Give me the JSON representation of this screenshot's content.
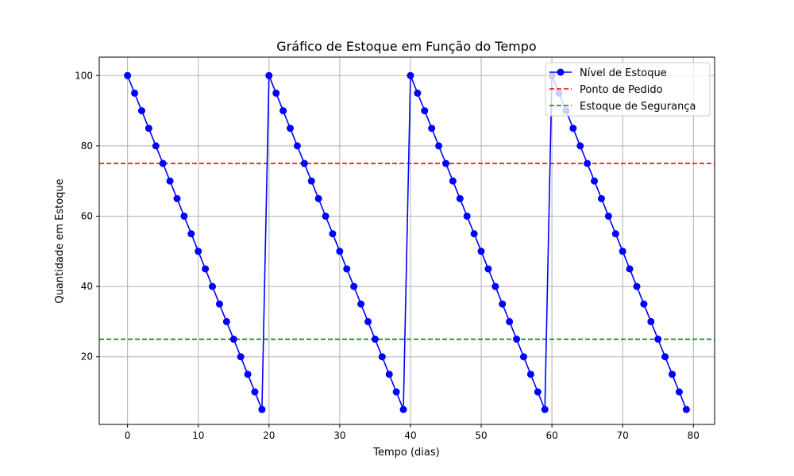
{
  "chart_data": {
    "type": "line",
    "title": "Gráfico de Estoque em Função do Tempo",
    "xlabel": "Tempo (dias)",
    "ylabel": "Quantidade em Estoque",
    "xlim": [
      -4,
      83
    ],
    "ylim": [
      0.75,
      105.25
    ],
    "xticks": [
      0,
      10,
      20,
      30,
      40,
      50,
      60,
      70,
      80
    ],
    "yticks": [
      20,
      40,
      60,
      80,
      100
    ],
    "grid": true,
    "legend_position": "top-right",
    "series": [
      {
        "name": "Nível de Estoque",
        "color": "#0000ff",
        "style": "solid",
        "marker": "circle",
        "x": [
          0,
          1,
          2,
          3,
          4,
          5,
          6,
          7,
          8,
          9,
          10,
          11,
          12,
          13,
          14,
          15,
          16,
          17,
          18,
          19,
          20,
          21,
          22,
          23,
          24,
          25,
          26,
          27,
          28,
          29,
          30,
          31,
          32,
          33,
          34,
          35,
          36,
          37,
          38,
          39,
          40,
          41,
          42,
          43,
          44,
          45,
          46,
          47,
          48,
          49,
          50,
          51,
          52,
          53,
          54,
          55,
          56,
          57,
          58,
          59,
          60,
          61,
          62,
          63,
          64,
          65,
          66,
          67,
          68,
          69,
          70,
          71,
          72,
          73,
          74,
          75,
          76,
          77,
          78,
          79
        ],
        "y": [
          100,
          95,
          90,
          85,
          80,
          75,
          70,
          65,
          60,
          55,
          50,
          45,
          40,
          35,
          30,
          25,
          20,
          15,
          10,
          5,
          100,
          95,
          90,
          85,
          80,
          75,
          70,
          65,
          60,
          55,
          50,
          45,
          40,
          35,
          30,
          25,
          20,
          15,
          10,
          5,
          100,
          95,
          90,
          85,
          80,
          75,
          70,
          65,
          60,
          55,
          50,
          45,
          40,
          35,
          30,
          25,
          20,
          15,
          10,
          5,
          100,
          95,
          90,
          85,
          80,
          75,
          70,
          65,
          60,
          55,
          50,
          45,
          40,
          35,
          30,
          25,
          20,
          15,
          10,
          5
        ]
      },
      {
        "name": "Ponto de Pedido",
        "color": "#ff0000",
        "style": "dashed",
        "y_constant": 75
      },
      {
        "name": "Estoque de Segurança",
        "color": "#008000",
        "style": "dashed",
        "y_constant": 25
      }
    ]
  }
}
